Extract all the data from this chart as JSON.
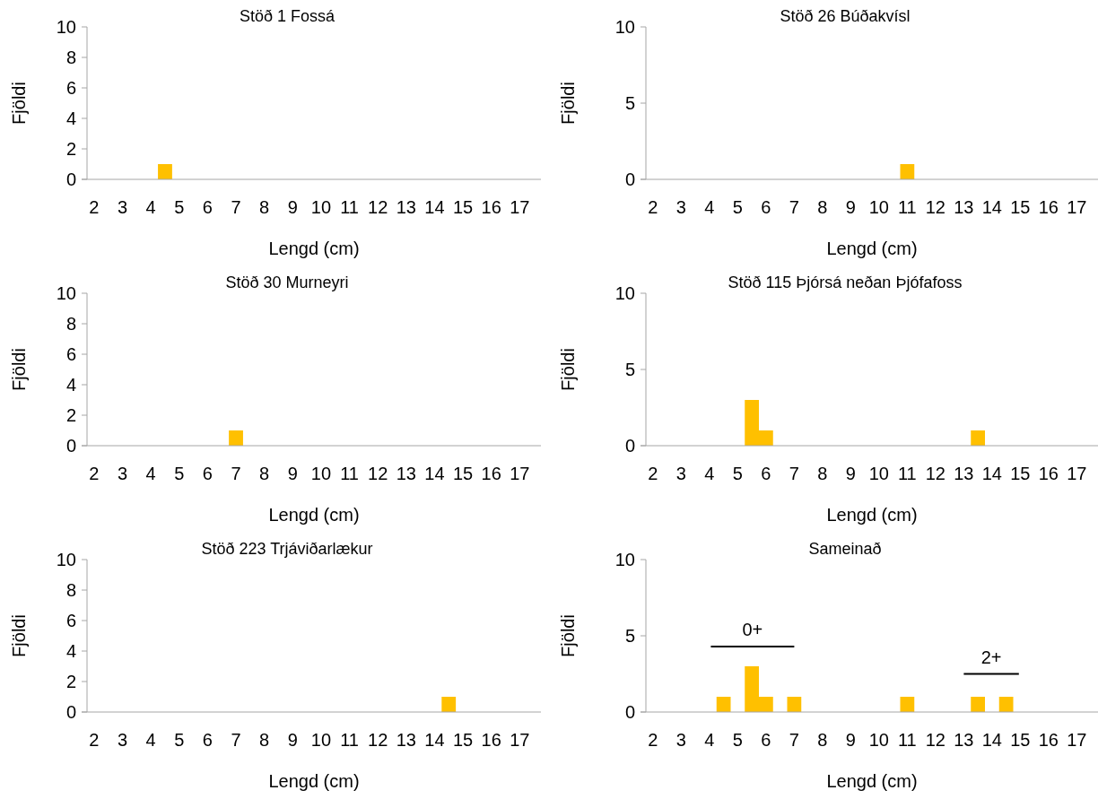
{
  "chart_data": [
    {
      "type": "bar",
      "title": "Stöð 1 Fossá",
      "xlabel": "Lengd (cm)",
      "ylabel": "Fjöldi",
      "categories": [
        "2",
        null,
        "3",
        null,
        "4",
        null,
        "5",
        null,
        "6",
        null,
        "7",
        null,
        "8",
        null,
        "9",
        null,
        "10",
        null,
        "11",
        null,
        "12",
        null,
        "13",
        null,
        "14",
        null,
        "15",
        null,
        "16",
        null,
        "17",
        null
      ],
      "values": [
        0,
        0,
        0,
        0,
        0,
        1,
        0,
        0,
        0,
        0,
        0,
        0,
        0,
        0,
        0,
        0,
        0,
        0,
        0,
        0,
        0,
        0,
        0,
        0,
        0,
        0,
        0,
        0,
        0,
        0,
        0,
        0
      ],
      "color": "#ffc000",
      "ylim": [
        0,
        10
      ],
      "yticks": [
        0,
        2,
        4,
        6,
        8,
        10
      ]
    },
    {
      "type": "bar",
      "title": "Stöð 26 Búðakvísl",
      "xlabel": "Lengd (cm)",
      "ylabel": "Fjöldi",
      "categories": [
        "2",
        null,
        "3",
        null,
        "4",
        null,
        "5",
        null,
        "6",
        null,
        "7",
        null,
        "8",
        null,
        "9",
        null,
        "10",
        null,
        "11",
        null,
        "12",
        null,
        "13",
        null,
        "14",
        null,
        "15",
        null,
        "16",
        null,
        "17",
        null
      ],
      "values": [
        0,
        0,
        0,
        0,
        0,
        0,
        0,
        0,
        0,
        0,
        0,
        0,
        0,
        0,
        0,
        0,
        0,
        0,
        1,
        0,
        0,
        0,
        0,
        0,
        0,
        0,
        0,
        0,
        0,
        0,
        0,
        0
      ],
      "color": "#ffc000",
      "ylim": [
        0,
        10
      ],
      "yticks": [
        0,
        5,
        10
      ]
    },
    {
      "type": "bar",
      "title": "Stöð 30 Murneyri",
      "xlabel": "Lengd (cm)",
      "ylabel": "Fjöldi",
      "categories": [
        "2",
        null,
        "3",
        null,
        "4",
        null,
        "5",
        null,
        "6",
        null,
        "7",
        null,
        "8",
        null,
        "9",
        null,
        "10",
        null,
        "11",
        null,
        "12",
        null,
        "13",
        null,
        "14",
        null,
        "15",
        null,
        "16",
        null,
        "17",
        null
      ],
      "values": [
        0,
        0,
        0,
        0,
        0,
        0,
        0,
        0,
        0,
        0,
        1,
        0,
        0,
        0,
        0,
        0,
        0,
        0,
        0,
        0,
        0,
        0,
        0,
        0,
        0,
        0,
        0,
        0,
        0,
        0,
        0,
        0
      ],
      "color": "#ffc000",
      "ylim": [
        0,
        10
      ],
      "yticks": [
        0,
        2,
        4,
        6,
        8,
        10
      ]
    },
    {
      "type": "bar",
      "title": "Stöð 115 Þjórsá neðan Þjófafoss",
      "xlabel": "Lengd (cm)",
      "ylabel": "Fjöldi",
      "categories": [
        "2",
        null,
        "3",
        null,
        "4",
        null,
        "5",
        null,
        "6",
        null,
        "7",
        null,
        "8",
        null,
        "9",
        null,
        "10",
        null,
        "11",
        null,
        "12",
        null,
        "13",
        null,
        "14",
        null,
        "15",
        null,
        "16",
        null,
        "17",
        null
      ],
      "values": [
        0,
        0,
        0,
        0,
        0,
        0,
        0,
        3,
        1,
        0,
        0,
        0,
        0,
        0,
        0,
        0,
        0,
        0,
        0,
        0,
        0,
        0,
        0,
        1,
        0,
        0,
        0,
        0,
        0,
        0,
        0,
        0
      ],
      "color": "#ffc000",
      "ylim": [
        0,
        10
      ],
      "yticks": [
        0,
        5,
        10
      ]
    },
    {
      "type": "bar",
      "title": "Stöð 223 Trjáviðarlækur",
      "xlabel": "Lengd (cm)",
      "ylabel": "Fjöldi",
      "categories": [
        "2",
        null,
        "3",
        null,
        "4",
        null,
        "5",
        null,
        "6",
        null,
        "7",
        null,
        "8",
        null,
        "9",
        null,
        "10",
        null,
        "11",
        null,
        "12",
        null,
        "13",
        null,
        "14",
        null,
        "15",
        null,
        "16",
        null,
        "17",
        null
      ],
      "values": [
        0,
        0,
        0,
        0,
        0,
        0,
        0,
        0,
        0,
        0,
        0,
        0,
        0,
        0,
        0,
        0,
        0,
        0,
        0,
        0,
        0,
        0,
        0,
        0,
        0,
        1,
        0,
        0,
        0,
        0,
        0,
        0
      ],
      "color": "#ffc000",
      "ylim": [
        0,
        10
      ],
      "yticks": [
        0,
        2,
        4,
        6,
        8,
        10
      ]
    },
    {
      "type": "bar",
      "title": "Sameinað",
      "xlabel": "Lengd (cm)",
      "ylabel": "Fjöldi",
      "categories": [
        "2",
        null,
        "3",
        null,
        "4",
        null,
        "5",
        null,
        "6",
        null,
        "7",
        null,
        "8",
        null,
        "9",
        null,
        "10",
        null,
        "11",
        null,
        "12",
        null,
        "13",
        null,
        "14",
        null,
        "15",
        null,
        "16",
        null,
        "17",
        null
      ],
      "values": [
        0,
        0,
        0,
        0,
        0,
        1,
        0,
        3,
        1,
        0,
        1,
        0,
        0,
        0,
        0,
        0,
        0,
        0,
        1,
        0,
        0,
        0,
        0,
        1,
        0,
        1,
        0,
        0,
        0,
        0,
        0,
        0
      ],
      "color": "#ffc000",
      "ylim": [
        0,
        10
      ],
      "yticks": [
        0,
        5,
        10
      ],
      "annotations": [
        "0+",
        "2+"
      ]
    }
  ]
}
